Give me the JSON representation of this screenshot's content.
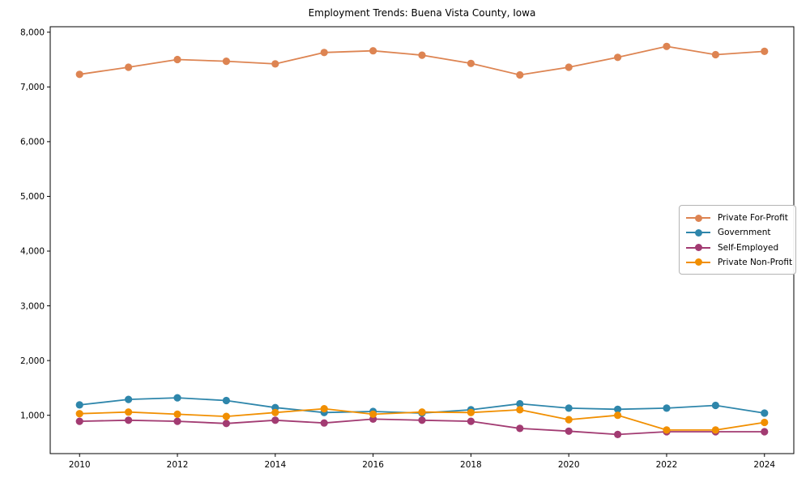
{
  "chart_data": {
    "type": "line",
    "title": "Employment Trends: Buena Vista County, Iowa",
    "xlabel": "",
    "ylabel": "",
    "grid": false,
    "legend_position": "center right",
    "xlim": [
      2009.4,
      2024.6
    ],
    "ylim": [
      300,
      8100
    ],
    "x": [
      2010,
      2011,
      2012,
      2013,
      2014,
      2015,
      2016,
      2017,
      2018,
      2019,
      2020,
      2021,
      2022,
      2023,
      2024
    ],
    "x_ticks": [
      2010,
      2012,
      2014,
      2016,
      2018,
      2020,
      2022,
      2024
    ],
    "x_tick_labels": [
      "2010",
      "2012",
      "2014",
      "2016",
      "2018",
      "2020",
      "2022",
      "2024"
    ],
    "y_ticks": [
      1000,
      2000,
      3000,
      4000,
      5000,
      6000,
      7000,
      8000
    ],
    "y_tick_labels": [
      "1,000",
      "2,000",
      "3,000",
      "4,000",
      "5,000",
      "6,000",
      "7,000",
      "8,000"
    ],
    "series": [
      {
        "name": "Private For-Profit",
        "color": "#DD8452",
        "values": [
          7230,
          7360,
          7500,
          7470,
          7420,
          7630,
          7660,
          7580,
          7430,
          7220,
          7360,
          7540,
          7740,
          7590,
          7650
        ]
      },
      {
        "name": "Government",
        "color": "#2E86AB",
        "values": [
          1190,
          1290,
          1320,
          1270,
          1140,
          1050,
          1070,
          1040,
          1100,
          1210,
          1130,
          1110,
          1130,
          1180,
          1040
        ]
      },
      {
        "name": "Self-Employed",
        "color": "#A23B72",
        "values": [
          890,
          910,
          890,
          850,
          910,
          860,
          930,
          910,
          890,
          760,
          710,
          650,
          700,
          700,
          700
        ]
      },
      {
        "name": "Private Non-Profit",
        "color": "#F18F01",
        "values": [
          1030,
          1060,
          1020,
          980,
          1050,
          1120,
          1020,
          1060,
          1050,
          1100,
          920,
          1000,
          730,
          730,
          870
        ]
      }
    ]
  }
}
